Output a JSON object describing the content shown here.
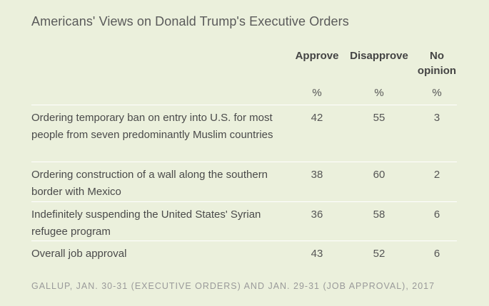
{
  "title": "Americans' Views on Donald Trump's Executive Orders",
  "columns": {
    "approve": "Approve",
    "disapprove": "Disapprove",
    "no_opinion_line1": "No",
    "no_opinion_line2": "opinion",
    "unit": "%"
  },
  "chart_data": {
    "type": "table",
    "title": "Americans' Views on Donald Trump's Executive Orders",
    "columns": [
      "Approve",
      "Disapprove",
      "No opinion"
    ],
    "unit": "%",
    "rows": [
      {
        "label": "Ordering temporary ban on entry into U.S. for most people from seven predominantly Muslim countries",
        "approve": "42",
        "disapprove": "55",
        "no_opinion": "3"
      },
      {
        "label": "Ordering construction of a wall along the southern border with Mexico",
        "approve": "38",
        "disapprove": "60",
        "no_opinion": "2"
      },
      {
        "label": "Indefinitely suspending the United States' Syrian refugee program",
        "approve": "36",
        "disapprove": "58",
        "no_opinion": "6"
      },
      {
        "label": "Overall job approval",
        "approve": "43",
        "disapprove": "52",
        "no_opinion": "6"
      }
    ],
    "source": "GALLUP, JAN. 30-31 (EXECUTIVE ORDERS) AND JAN. 29-31 (JOB APPROVAL), 2017"
  }
}
